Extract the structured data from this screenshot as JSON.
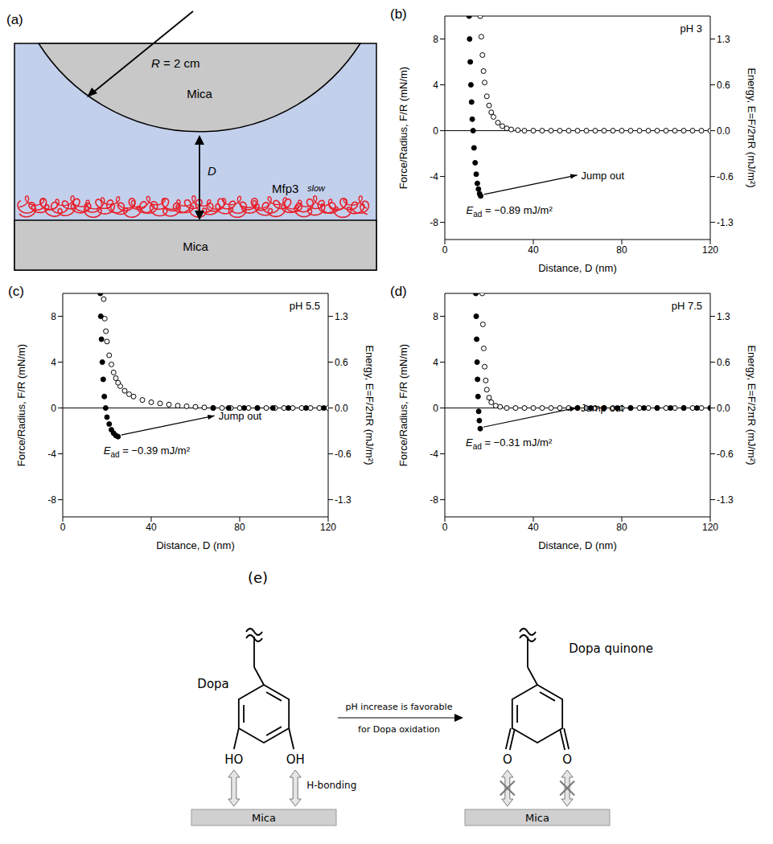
{
  "panel_a": {
    "label": "(a)",
    "radius_label": "R = 2 cm",
    "top_surface": "Mica",
    "bottom_surface": "Mica",
    "protein": "Mfp3",
    "protein_note": "slow",
    "gap_label": "D"
  },
  "chart_data": [
    {
      "type": "scatter",
      "panel_label": "(b)",
      "title": "pH 3",
      "x_label": "Distance, D (nm)",
      "y_label": "Force/Radius, F/R (mN/m)",
      "y2_label": "Energy, E=F/2πR (mJ/m²)",
      "xlim": [
        0,
        120
      ],
      "xticks": [
        0,
        40,
        80,
        120
      ],
      "ylim": [
        -9.5,
        10
      ],
      "yticks": [
        -8,
        -4,
        0,
        4,
        8
      ],
      "y2lim": [
        -1.512,
        1.592
      ],
      "y2ticks": [
        {
          "value": -1.273,
          "label": "-1.3"
        },
        {
          "value": -0.637,
          "label": "-0.6"
        },
        {
          "value": 0,
          "label": "0.0"
        },
        {
          "value": 0.637,
          "label": "0.6"
        },
        {
          "value": 1.273,
          "label": "1.3"
        }
      ],
      "series": [
        {
          "marker": "open_circle",
          "color": "#000000",
          "x": [
            120,
            116,
            112,
            108,
            104,
            100,
            96,
            92,
            88,
            84,
            80,
            76,
            72,
            68,
            64,
            60,
            56,
            52,
            48,
            44,
            40,
            36,
            33,
            30,
            28,
            26,
            24,
            22,
            21,
            20,
            19,
            18,
            17.5,
            17,
            16.5,
            16
          ],
          "values": [
            0,
            0,
            0,
            0,
            0,
            0,
            0,
            0,
            0,
            0,
            0,
            0,
            0,
            0,
            0,
            0,
            0,
            0,
            0,
            0,
            0,
            0,
            0.05,
            0.1,
            0.2,
            0.4,
            0.7,
            1.2,
            1.6,
            2.2,
            3.0,
            4.2,
            5.2,
            6.6,
            8.2,
            10
          ]
        },
        {
          "marker": "filled_circle",
          "color": "#000000",
          "x": [
            11,
            11.2,
            11.5,
            11.8,
            12.1,
            12.4,
            12.8,
            13.2,
            13.7,
            14.2,
            14.7,
            15.2,
            15.7,
            16.2
          ],
          "values": [
            10,
            8,
            6,
            4,
            2.5,
            1,
            0,
            -1.5,
            -2.8,
            -3.8,
            -4.6,
            -5.1,
            -5.5,
            -5.7
          ]
        }
      ],
      "annotations": {
        "jump": "Jump out",
        "adhesion": {
          "symbol": "E",
          "subscript": "ad",
          "text": " = −0.89 mJ/m²"
        }
      }
    },
    {
      "type": "scatter",
      "panel_label": "(c)",
      "title": "pH 5.5",
      "x_label": "Distance, D (nm)",
      "y_label": "Force/Radius, F/R (mN/m)",
      "y2_label": "Energy, E=F/2πR (mJ/m²)",
      "xlim": [
        0,
        120
      ],
      "xticks": [
        0,
        40,
        80,
        120
      ],
      "ylim": [
        -9.5,
        10
      ],
      "yticks": [
        -8,
        -4,
        0,
        4,
        8
      ],
      "y2lim": [
        -1.512,
        1.592
      ],
      "y2ticks": [
        {
          "value": -1.273,
          "label": "-1.3"
        },
        {
          "value": -0.637,
          "label": "-0.6"
        },
        {
          "value": 0,
          "label": "0.0"
        },
        {
          "value": 0.637,
          "label": "0.6"
        },
        {
          "value": 1.273,
          "label": "1.3"
        }
      ],
      "series": [
        {
          "marker": "open_circle",
          "color": "#000000",
          "x": [
            120,
            116,
            112,
            108,
            104,
            100,
            96,
            92,
            88,
            84,
            80,
            76,
            72,
            68,
            64,
            60,
            56,
            52,
            48,
            44,
            40,
            36,
            32,
            30,
            28,
            26,
            25,
            24,
            23,
            22,
            21,
            20,
            19.5,
            19,
            18.5
          ],
          "values": [
            0,
            0,
            0,
            0,
            0,
            0,
            0,
            0,
            0,
            0,
            0,
            0,
            0,
            0,
            0.05,
            0.1,
            0.15,
            0.2,
            0.3,
            0.4,
            0.5,
            0.7,
            1.0,
            1.2,
            1.5,
            1.9,
            2.2,
            2.6,
            3.1,
            3.8,
            4.6,
            5.8,
            6.7,
            7.8,
            9.5
          ]
        },
        {
          "marker": "filled_circle",
          "color": "#000000",
          "x": [
            17,
            17.2,
            17.5,
            17.9,
            18.3,
            18.8,
            19.4,
            20,
            21,
            22,
            23,
            24,
            25,
            68,
            75,
            82,
            88,
            95,
            102,
            110,
            118
          ],
          "values": [
            10,
            8,
            6,
            4,
            2.5,
            1,
            0,
            -0.8,
            -1.4,
            -1.9,
            -2.2,
            -2.4,
            -2.5,
            0,
            0,
            0,
            0,
            0,
            0,
            0,
            0
          ]
        }
      ],
      "annotations": {
        "jump": "Jump out",
        "adhesion": {
          "symbol": "E",
          "subscript": "ad",
          "text": " = −0.39 mJ/m²"
        }
      }
    },
    {
      "type": "scatter",
      "panel_label": "(d)",
      "title": "pH 7.5",
      "x_label": "Distance, D (nm)",
      "y_label": "Force/Radius, F/R (mN/m)",
      "y2_label": "Energy, E=F/2πR (mJ/m²)",
      "xlim": [
        0,
        120
      ],
      "xticks": [
        0,
        40,
        80,
        120
      ],
      "ylim": [
        -9.5,
        10
      ],
      "yticks": [
        -8,
        -4,
        0,
        4,
        8
      ],
      "y2lim": [
        -1.512,
        1.592
      ],
      "y2ticks": [
        {
          "value": -1.273,
          "label": "-1.3"
        },
        {
          "value": -0.637,
          "label": "-0.6"
        },
        {
          "value": 0,
          "label": "0.0"
        },
        {
          "value": 0.637,
          "label": "0.6"
        },
        {
          "value": 1.273,
          "label": "1.3"
        }
      ],
      "series": [
        {
          "marker": "open_circle",
          "color": "#000000",
          "x": [
            120,
            116,
            112,
            108,
            104,
            100,
            96,
            92,
            88,
            84,
            80,
            76,
            72,
            68,
            64,
            60,
            56,
            52,
            48,
            44,
            40,
            36,
            32,
            28,
            25,
            23,
            21,
            20,
            19,
            18.5,
            18,
            17.6,
            17.2,
            16.9
          ],
          "values": [
            0,
            0,
            0,
            0,
            0,
            0,
            0,
            0,
            0,
            0,
            0,
            0,
            0,
            0,
            0,
            0,
            0,
            0,
            0,
            0,
            0,
            0,
            0,
            0,
            0.1,
            0.2,
            0.5,
            0.9,
            1.6,
            2.4,
            3.6,
            5.2,
            7.3,
            10
          ]
        },
        {
          "marker": "filled_circle",
          "color": "#000000",
          "x": [
            14,
            14.2,
            14.4,
            14.6,
            14.8,
            15,
            15.3,
            15.6,
            16,
            60,
            66,
            72,
            78,
            84,
            90,
            96,
            102,
            108,
            114,
            120
          ],
          "values": [
            10,
            8,
            6,
            4,
            2.5,
            1,
            -0.3,
            -1.1,
            -1.8,
            0,
            0,
            0,
            0,
            0,
            0,
            0,
            0,
            0,
            0,
            0
          ]
        }
      ],
      "annotations": {
        "jump": "Jump out",
        "adhesion": {
          "symbol": "E",
          "subscript": "ad",
          "text": " = −0.31 mJ/m²"
        }
      }
    }
  ],
  "panel_e": {
    "label": "(e)",
    "arrow_text": [
      "pH increase is favorable",
      "for Dopa oxidation"
    ],
    "left": {
      "name": "Dopa",
      "groups": [
        "HO",
        "OH"
      ],
      "bond_label": "H-bonding",
      "surface": "Mica"
    },
    "right": {
      "name": "Dopa quinone",
      "groups": [
        "O",
        "O"
      ],
      "surface": "Mica"
    }
  }
}
